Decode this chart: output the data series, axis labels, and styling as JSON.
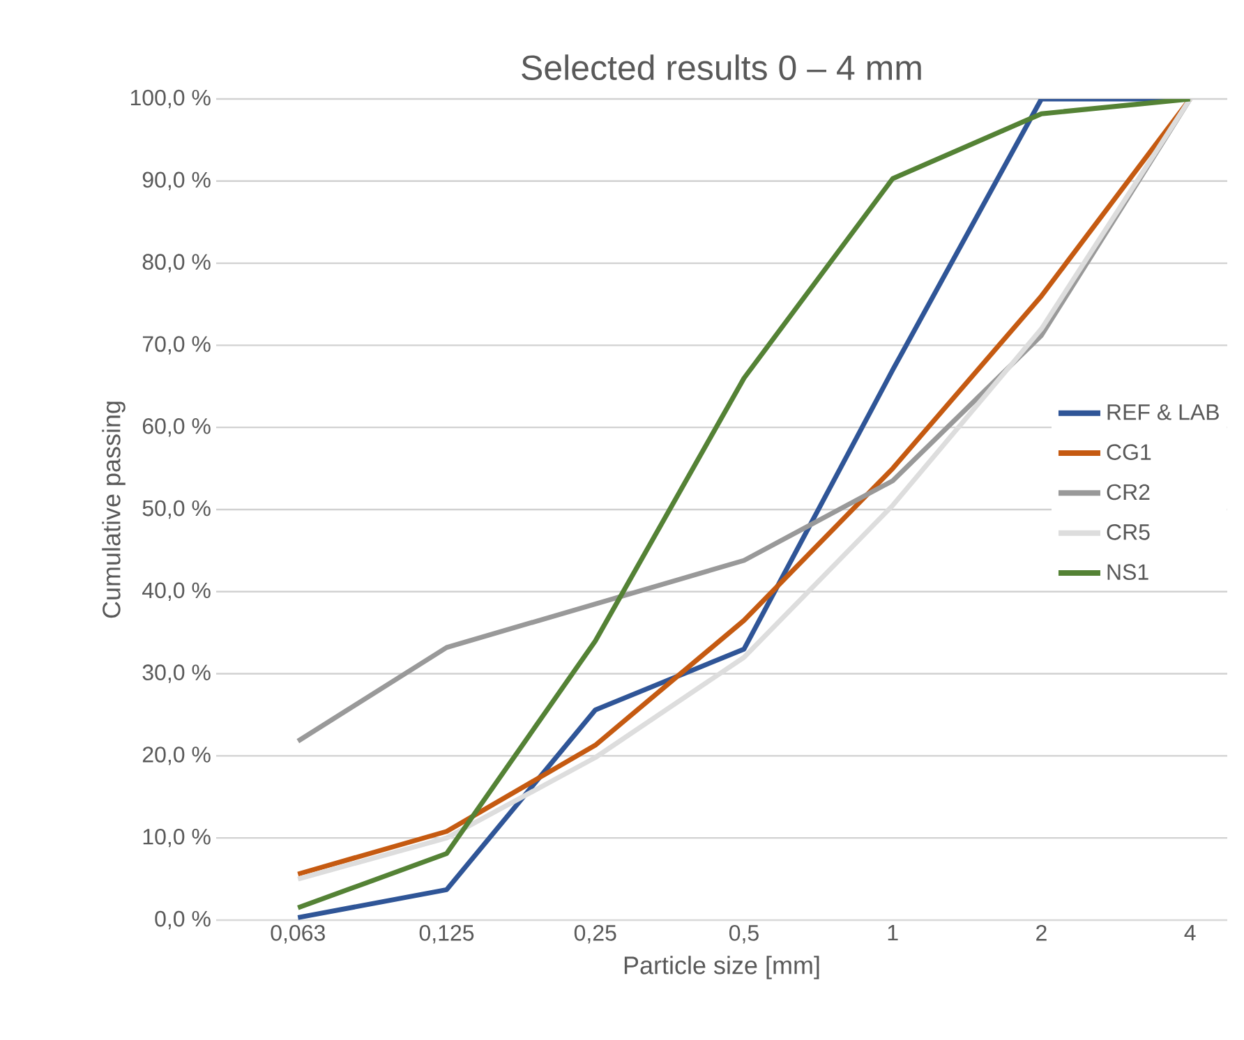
{
  "chart_data": {
    "type": "line",
    "title": "Selected results 0 – 4 mm",
    "xlabel": "Particle size [mm]",
    "ylabel": "Cumulative passing",
    "categories": [
      "0,063",
      "0,125",
      "0,25",
      "0,5",
      "1",
      "2",
      "4"
    ],
    "series": [
      {
        "name": "REF & LAB",
        "color": "#2f5597",
        "values": [
          0.3,
          3.7,
          25.6,
          33,
          67,
          100,
          100
        ]
      },
      {
        "name": "CG1",
        "color": "#c55a11",
        "values": [
          5.6,
          10.8,
          21.3,
          36.5,
          55,
          76,
          100
        ]
      },
      {
        "name": "CR2",
        "color": "#999999",
        "values": [
          21.8,
          33.2,
          38.5,
          43.8,
          53.5,
          71.2,
          100
        ]
      },
      {
        "name": "CR5",
        "color": "#dddddd",
        "values": [
          5,
          10,
          19.8,
          32,
          50.5,
          72,
          100
        ]
      },
      {
        "name": "NS1",
        "color": "#548235",
        "values": [
          1.5,
          8.1,
          34,
          66,
          90.3,
          98.2,
          100
        ]
      }
    ],
    "ylim": [
      0,
      100
    ],
    "yticks": [
      {
        "value": 0,
        "label": "0,0 %"
      },
      {
        "value": 10,
        "label": "10,0 %"
      },
      {
        "value": 20,
        "label": "20,0 %"
      },
      {
        "value": 30,
        "label": "30,0 %"
      },
      {
        "value": 40,
        "label": "40,0 %"
      },
      {
        "value": 50,
        "label": "50,0 %"
      },
      {
        "value": 60,
        "label": "60,0 %"
      },
      {
        "value": 70,
        "label": "70,0 %"
      },
      {
        "value": 80,
        "label": "80,0 %"
      },
      {
        "value": 90,
        "label": "90,0 %"
      },
      {
        "value": 100,
        "label": "100,0 %"
      }
    ],
    "grid": "y",
    "legend": "right",
    "marker": "none",
    "line_style": "solid"
  }
}
